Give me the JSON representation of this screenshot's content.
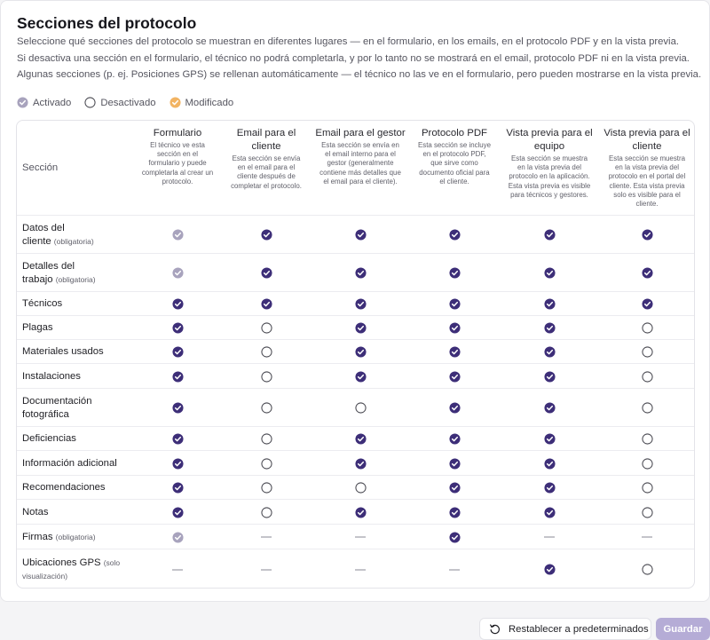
{
  "title": "Secciones del protocolo",
  "description": [
    "Seleccione qué secciones del protocolo se muestran en diferentes lugares — en el formulario, en los emails, en el protocolo PDF y en la vista previa.",
    "Si desactiva una sección en el formulario, el técnico no podrá completarla, y por lo tanto no se mostrará en el email, protocolo PDF ni en la vista previa.",
    "Algunas secciones (p. ej. Posiciones GPS) se rellenan automáticamente — el técnico no las ve en el formulario, pero pueden mostrarse en la vista previa."
  ],
  "legend": {
    "enabled": "Activado",
    "disabled": "Desactivado",
    "modified": "Modificado"
  },
  "colors": {
    "on": "#3d2e78",
    "locked": "#a8a3bd",
    "modified": "#f2b463",
    "off_border": "#4a4a52",
    "save_button": "#b5acd6"
  },
  "table": {
    "section_header": "Sección",
    "columns": [
      {
        "title": [
          "Formulario"
        ],
        "desc": [
          "El técnico ve esta",
          "sección en el",
          "formulario y puede",
          "completarla al crear un",
          "protocolo."
        ]
      },
      {
        "title": [
          "Email para el",
          "cliente"
        ],
        "desc": [
          "Esta sección se envía",
          "en el email para el",
          "cliente después de",
          "completar el protocolo."
        ]
      },
      {
        "title": [
          "Email para el gestor"
        ],
        "desc": [
          "Esta sección se envía en",
          "el email interno para el",
          "gestor (generalmente",
          "contiene más detalles que",
          "el email para el cliente)."
        ]
      },
      {
        "title": [
          "Protocolo PDF"
        ],
        "desc": [
          "Esta sección se incluye",
          "en el protocolo PDF,",
          "que sirve como",
          "documento oficial para",
          "el cliente."
        ]
      },
      {
        "title": [
          "Vista previa para el",
          "equipo"
        ],
        "desc": [
          "Esta sección se muestra",
          "en la vista previa del",
          "protocolo en la aplicación.",
          "Esta vista previa es visible",
          "para técnicos y gestores."
        ]
      },
      {
        "title": [
          "Vista previa para el",
          "cliente"
        ],
        "desc": [
          "Esta sección se muestra",
          "en la vista previa del",
          "protocolo en el portal del",
          "cliente. Esta vista previa",
          "solo es visible para el",
          "cliente."
        ]
      }
    ],
    "rows": [
      {
        "label": [
          "Datos del",
          "cliente"
        ],
        "sub": "(obligatoria)",
        "cells": [
          "locked",
          "on",
          "on",
          "on",
          "on",
          "on"
        ]
      },
      {
        "label": [
          "Detalles del",
          "trabajo"
        ],
        "sub": "(obligatoria)",
        "cells": [
          "locked",
          "on",
          "on",
          "on",
          "on",
          "on"
        ]
      },
      {
        "label": [
          "Técnicos"
        ],
        "sub": "",
        "cells": [
          "on",
          "on",
          "on",
          "on",
          "on",
          "on"
        ]
      },
      {
        "label": [
          "Plagas"
        ],
        "sub": "",
        "cells": [
          "on",
          "off",
          "on",
          "on",
          "on",
          "off"
        ]
      },
      {
        "label": [
          "Materiales usados"
        ],
        "sub": "",
        "cells": [
          "on",
          "off",
          "on",
          "on",
          "on",
          "off"
        ]
      },
      {
        "label": [
          "Instalaciones"
        ],
        "sub": "",
        "cells": [
          "on",
          "off",
          "on",
          "on",
          "on",
          "off"
        ]
      },
      {
        "label": [
          "Documentación",
          "fotográfica"
        ],
        "sub": "",
        "cells": [
          "on",
          "off",
          "off",
          "on",
          "on",
          "off"
        ]
      },
      {
        "label": [
          "Deficiencias"
        ],
        "sub": "",
        "cells": [
          "on",
          "off",
          "on",
          "on",
          "on",
          "off"
        ]
      },
      {
        "label": [
          "Información adicional"
        ],
        "sub": "",
        "cells": [
          "on",
          "off",
          "on",
          "on",
          "on",
          "off"
        ]
      },
      {
        "label": [
          "Recomendaciones"
        ],
        "sub": "",
        "cells": [
          "on",
          "off",
          "off",
          "on",
          "on",
          "off"
        ]
      },
      {
        "label": [
          "Notas"
        ],
        "sub": "",
        "cells": [
          "on",
          "off",
          "on",
          "on",
          "on",
          "off"
        ]
      },
      {
        "label": [
          "Firmas"
        ],
        "sub": "(obligatoria)",
        "cells": [
          "locked",
          "dash",
          "dash",
          "on",
          "dash",
          "dash"
        ]
      },
      {
        "label": [
          "Ubicaciones GPS"
        ],
        "sub": "(solo visualización)",
        "cells": [
          "dash",
          "dash",
          "dash",
          "dash",
          "on",
          "off"
        ]
      }
    ]
  },
  "buttons": {
    "reset": "Restablecer a predeterminados",
    "reset_icon": "rotate-ccw-icon",
    "save": "Guardar"
  }
}
